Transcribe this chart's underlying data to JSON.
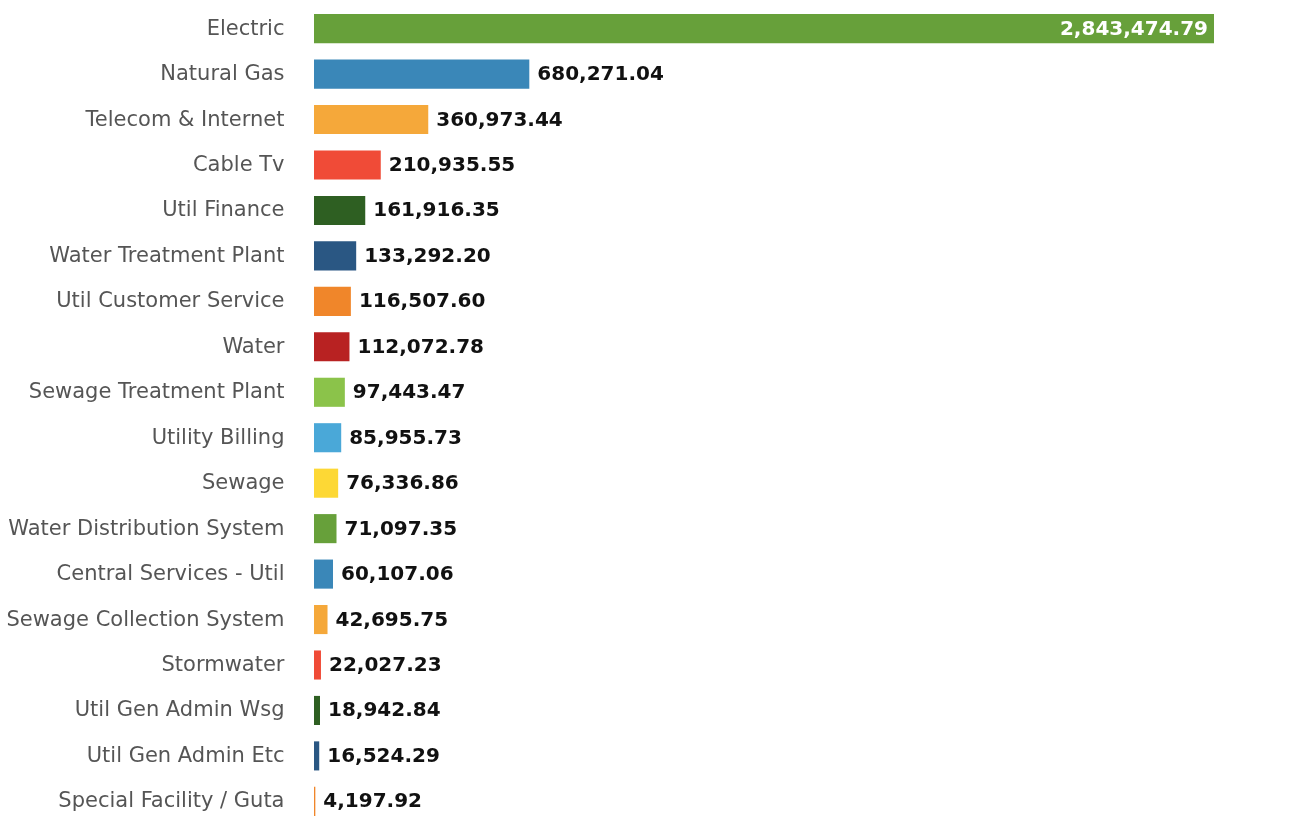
{
  "chart_data": {
    "type": "bar",
    "orientation": "horizontal",
    "tick_labels": "y",
    "grid": false,
    "value_labels": [
      "2,843,474.79",
      "680,271.04",
      "360,973.44",
      "210,935.55",
      "161,916.35",
      "133,292.20",
      "116,507.60",
      "112,072.78",
      "97,443.47",
      "85,955.73",
      "76,336.86",
      "71,097.35",
      "60,107.06",
      "42,695.75",
      "22,027.23",
      "18,942.84",
      "16,524.29",
      "4,197.92"
    ],
    "categories": [
      "Electric",
      "Natural Gas",
      "Telecom & Internet",
      "Cable Tv",
      "Util Finance",
      "Water Treatment Plant",
      "Util Customer Service",
      "Water",
      "Sewage Treatment Plant",
      "Utility Billing",
      "Sewage",
      "Water Distribution System",
      "Central Services - Util",
      "Sewage Collection System",
      "Stormwater",
      "Util Gen Admin Wsg",
      "Util Gen Admin Etc",
      "Special Facility / Guta"
    ],
    "values": [
      2843474.79,
      680271.04,
      360973.44,
      210935.55,
      161916.35,
      133292.2,
      116507.6,
      112072.78,
      97443.47,
      85955.73,
      76336.86,
      71097.35,
      60107.06,
      42695.75,
      22027.23,
      18942.84,
      16524.29,
      4197.92
    ],
    "colors": [
      "#67a03a",
      "#3a87b8",
      "#f5a83a",
      "#f04b37",
      "#2e5f22",
      "#2a5783",
      "#f0862a",
      "#b82222",
      "#8bc34a",
      "#4aa8d8",
      "#fdd835",
      "#67a03a",
      "#3a87b8",
      "#f5a83a",
      "#f04b37",
      "#2e5f22",
      "#2a5783",
      "#f0862a"
    ]
  }
}
